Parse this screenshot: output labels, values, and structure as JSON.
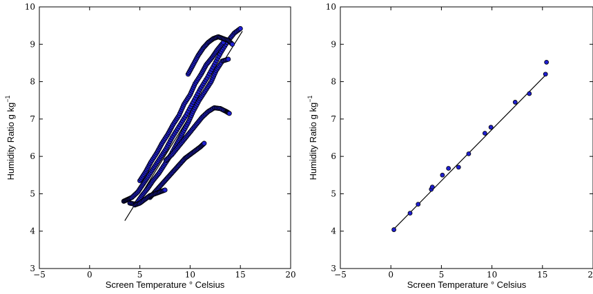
{
  "chart_data": [
    {
      "type": "scatter",
      "title": "",
      "xlabel": "Screen Temperature ° Celsius",
      "ylabel_main": "Humidity Ratio g kg",
      "ylabel_sup": "−1",
      "xlim": [
        -5,
        20
      ],
      "ylim": [
        3,
        10
      ],
      "xticks": [
        "−5",
        "0",
        "5",
        "10",
        "15",
        "20"
      ],
      "yticks": [
        "3",
        "4",
        "5",
        "6",
        "7",
        "8",
        "9",
        "10"
      ],
      "grid": false,
      "marker_color": "#1f1fd0",
      "marker_edge": "#000000",
      "fit_line": {
        "x": [
          3.5,
          15.2
        ],
        "y": [
          4.28,
          9.35
        ]
      },
      "series": [
        {
          "branches": [
            {
              "x": [
                3.4,
                3.8,
                4.2,
                4.8,
                5.3,
                5.8,
                6.4,
                7.0,
                7.6,
                8.2,
                8.9,
                9.6,
                10.3,
                11.0,
                11.7,
                12.4,
                13.1,
                13.8,
                14.4,
                15.0
              ],
              "y": [
                4.8,
                4.85,
                4.9,
                5.05,
                5.25,
                5.45,
                5.7,
                5.95,
                6.2,
                6.5,
                6.8,
                7.1,
                7.45,
                7.8,
                8.1,
                8.45,
                8.8,
                9.1,
                9.3,
                9.42
              ]
            },
            {
              "x": [
                4.0,
                4.6,
                5.2,
                5.8,
                6.3,
                6.9,
                7.5,
                8.1,
                8.7,
                9.2,
                9.8,
                10.3,
                10.9,
                11.5,
                12.1,
                12.6,
                13.2,
                13.8
              ],
              "y": [
                4.75,
                4.72,
                4.95,
                5.15,
                5.35,
                5.55,
                5.8,
                6.05,
                6.35,
                6.6,
                6.9,
                7.2,
                7.5,
                7.75,
                8.0,
                8.3,
                8.55,
                8.6
              ]
            },
            {
              "x": [
                5.0,
                5.6,
                6.1,
                6.7,
                7.2,
                7.8,
                8.3,
                8.9,
                9.4,
                10.0,
                10.5,
                11.1,
                11.6,
                12.2,
                12.7,
                13.3
              ],
              "y": [
                5.35,
                5.6,
                5.85,
                6.1,
                6.35,
                6.6,
                6.85,
                7.1,
                7.4,
                7.65,
                7.95,
                8.2,
                8.45,
                8.65,
                8.85,
                9.05
              ]
            },
            {
              "x": [
                7.6,
                8.2,
                8.8,
                9.4,
                10.0,
                10.6,
                11.2,
                11.8,
                12.4,
                13.0,
                13.6,
                13.9
              ],
              "y": [
                5.9,
                6.05,
                6.25,
                6.45,
                6.65,
                6.85,
                7.05,
                7.2,
                7.3,
                7.28,
                7.2,
                7.15
              ]
            },
            {
              "x": [
                6.0,
                6.5,
                7.0,
                7.5,
                8.0,
                8.5,
                9.0,
                9.5,
                10.0,
                10.5,
                11.0,
                11.4
              ],
              "y": [
                4.9,
                5.05,
                5.2,
                5.35,
                5.5,
                5.65,
                5.8,
                5.95,
                6.05,
                6.15,
                6.25,
                6.35
              ]
            },
            {
              "x": [
                4.5,
                5.0,
                5.5,
                6.0,
                6.5,
                7.0,
                7.5
              ],
              "y": [
                4.7,
                4.75,
                4.85,
                4.95,
                5.0,
                5.05,
                5.1
              ]
            },
            {
              "x": [
                9.8,
                10.3,
                10.8,
                11.3,
                11.8,
                12.3,
                12.8,
                13.3,
                13.8,
                14.2
              ],
              "y": [
                8.2,
                8.45,
                8.7,
                8.9,
                9.05,
                9.15,
                9.2,
                9.15,
                9.1,
                9.0
              ]
            }
          ]
        }
      ]
    },
    {
      "type": "scatter",
      "title": "",
      "xlabel": "Screen Temperature ° Celsius",
      "ylabel_main": "Humidity Ratio g kg",
      "ylabel_sup": "−1",
      "xlim": [
        -5,
        20
      ],
      "ylim": [
        3,
        10
      ],
      "xticks": [
        "−5",
        "0",
        "5",
        "10",
        "15",
        "20"
      ],
      "yticks": [
        "3",
        "4",
        "5",
        "6",
        "7",
        "8",
        "9",
        "10"
      ],
      "grid": false,
      "marker_color": "#1f1fd0",
      "marker_edge": "#000000",
      "fit_line": {
        "x": [
          0.2,
          15.4
        ],
        "y": [
          4.03,
          8.2
        ]
      },
      "series": [
        {
          "x": [
            0.3,
            1.9,
            2.7,
            4.0,
            4.1,
            5.1,
            5.7,
            6.7,
            7.7,
            9.3,
            9.9,
            12.3,
            13.7,
            15.3,
            15.4
          ],
          "y": [
            4.04,
            4.48,
            4.72,
            5.12,
            5.18,
            5.5,
            5.68,
            5.71,
            6.07,
            6.62,
            6.78,
            7.45,
            7.68,
            8.2,
            8.52
          ]
        }
      ]
    }
  ]
}
